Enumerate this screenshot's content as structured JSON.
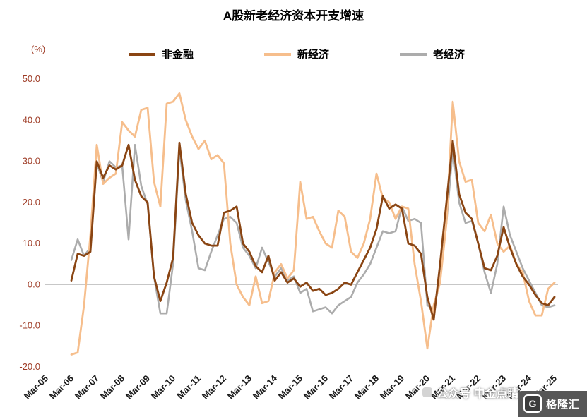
{
  "title": "A股新老经济资本开支增速",
  "y_unit_label": "(%)",
  "style": {
    "axis_label_color": "#9E3B25",
    "xtick_label_color": "#1a1a1a",
    "zero_line_color": "#BFBFBF",
    "background": "#FFFFFF"
  },
  "legend": [
    {
      "label": "非金融",
      "color": "#8A4513"
    },
    {
      "label": "新经济",
      "color": "#F6BE8C"
    },
    {
      "label": "老经济",
      "color": "#ACACAC"
    }
  ],
  "watermark": {
    "text": "公众号 中金点睛",
    "logo_text": "格隆汇",
    "logo_letter": "G"
  },
  "chart_data": {
    "type": "line",
    "title": "A股新老经济资本开支增速",
    "ylabel": "(%)",
    "ylim": [
      -20,
      50
    ],
    "y_ticks": [
      50,
      40,
      30,
      20,
      10,
      0,
      -10,
      -20
    ],
    "grid": false,
    "zero_line": true,
    "legend_position": "top",
    "x_tick_labels": [
      "Mar-05",
      "Mar-06",
      "Mar-07",
      "Mar-08",
      "Mar-09",
      "Mar-10",
      "Mar-11",
      "Mar-12",
      "Mar-13",
      "Mar-14",
      "Mar-15",
      "Mar-16",
      "Mar-17",
      "Mar-18",
      "Mar-19",
      "Mar-20",
      "Mar-21",
      "Mar-22",
      "Mar-23",
      "Mar-24",
      "Mar-25"
    ],
    "frequency": "quarterly",
    "series_x_start": "Mar-06",
    "series_x_end": "Mar-25",
    "series": [
      {
        "name": "非金融",
        "color": "#8A4513",
        "width": 2.8,
        "values": [
          1.0,
          7.5,
          7.0,
          8.0,
          30.0,
          26.0,
          29.0,
          28.0,
          29.0,
          34.0,
          25.5,
          21.5,
          20.0,
          2.0,
          -4.0,
          0.5,
          6.5,
          34.5,
          22.0,
          15.0,
          12.0,
          10.0,
          9.5,
          9.5,
          17.5,
          18.0,
          19.0,
          10.0,
          8.0,
          4.5,
          3.0,
          7.0,
          1.0,
          3.0,
          0.5,
          1.5,
          -0.5,
          0.5,
          -1.5,
          -1.0,
          -2.5,
          -2.0,
          -1.0,
          0.5,
          0.0,
          3.0,
          6.0,
          9.0,
          13.5,
          21.5,
          18.5,
          19.5,
          18.5,
          10.0,
          9.5,
          7.5,
          -3.0,
          -8.5,
          5.0,
          20.0,
          35.0,
          22.0,
          17.5,
          16.0,
          10.0,
          4.0,
          3.5,
          7.0,
          14.0,
          9.0,
          5.0,
          2.0,
          0.0,
          -2.5,
          -4.5,
          -5.0,
          -3.0
        ]
      },
      {
        "name": "新经济",
        "color": "#F6BE8C",
        "width": 2.8,
        "values": [
          -17.0,
          -16.5,
          -5.0,
          12.0,
          34.0,
          24.5,
          26.0,
          27.0,
          39.5,
          37.5,
          36.0,
          42.5,
          43.0,
          25.0,
          19.0,
          44.0,
          44.5,
          46.5,
          40.0,
          36.0,
          33.0,
          35.0,
          30.5,
          31.5,
          29.5,
          10.0,
          0.0,
          -3.0,
          -5.0,
          2.0,
          -4.5,
          -4.0,
          3.0,
          5.0,
          1.5,
          3.5,
          25.0,
          16.0,
          16.5,
          13.0,
          10.0,
          9.0,
          18.0,
          16.5,
          8.0,
          6.5,
          10.0,
          16.0,
          27.0,
          21.0,
          20.0,
          16.0,
          19.0,
          18.5,
          5.0,
          -4.0,
          -15.5,
          -5.0,
          0.5,
          15.0,
          44.5,
          30.0,
          25.0,
          25.5,
          15.0,
          13.0,
          17.0,
          10.0,
          8.0,
          9.5,
          5.0,
          3.0,
          -4.0,
          -7.5,
          -7.5,
          -1.0,
          0.5
        ]
      },
      {
        "name": "老经济",
        "color": "#ACACAC",
        "width": 2.6,
        "values": [
          6.0,
          11.0,
          7.0,
          9.0,
          29.5,
          25.0,
          30.0,
          28.5,
          29.0,
          11.0,
          34.0,
          24.0,
          19.5,
          2.0,
          -7.0,
          -7.0,
          5.0,
          33.0,
          20.5,
          13.0,
          4.0,
          3.5,
          8.0,
          12.0,
          16.0,
          16.5,
          15.0,
          9.0,
          7.0,
          4.0,
          9.0,
          5.5,
          2.0,
          4.0,
          1.0,
          2.0,
          -2.0,
          -1.0,
          -6.5,
          -6.0,
          -5.5,
          -7.0,
          -5.0,
          -4.0,
          -3.0,
          0.5,
          2.5,
          5.0,
          9.0,
          13.0,
          12.5,
          13.0,
          19.0,
          15.5,
          16.0,
          15.0,
          -5.0,
          -6.0,
          1.0,
          15.0,
          33.0,
          20.0,
          15.0,
          15.5,
          10.0,
          3.0,
          -2.0,
          5.0,
          19.0,
          12.0,
          8.0,
          4.0,
          1.0,
          -2.0,
          -5.0,
          -5.5,
          -5.0
        ]
      }
    ]
  }
}
